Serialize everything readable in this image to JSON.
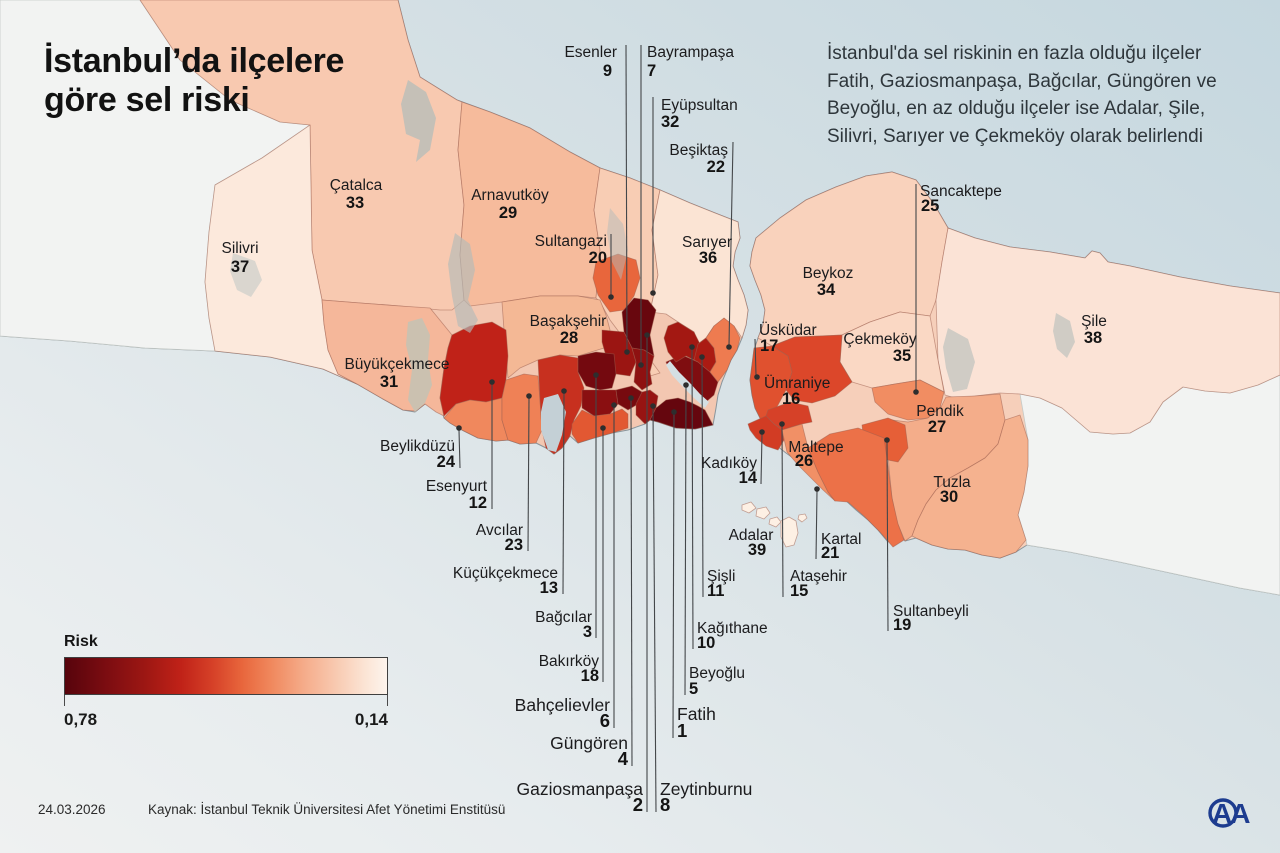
{
  "title": {
    "line1": "İstanbul’da ilçelere",
    "line2": "göre sel riski"
  },
  "description": {
    "text": "İstanbul'da sel riskinin en fazla olduğu ilçeler Fatih, Gaziosmanpaşa, Bağcılar, Güngören ve Beyoğlu, en az olduğu ilçeler ise Adalar, Şile, Silivri, Sarıyer ve Çekmeköy olarak belirlendi"
  },
  "legend": {
    "label": "Risk",
    "max_value": "0,78",
    "min_value": "0,14",
    "color_dark": "#57040c",
    "color_light": "#fdf4ed"
  },
  "footer": {
    "date": "24.03.2026",
    "source": "Kaynak: İstanbul Teknik Üniversitesi Afet Yönetimi Enstitüsü"
  },
  "logo": {
    "text": "AA",
    "color": "#1d3c8f"
  },
  "chart_data": {
    "type": "choropleth-map",
    "title": "İstanbul'da ilçelere göre sel riski",
    "value_label": "Risk",
    "value_range": [
      0.14,
      0.78
    ],
    "districts": [
      {
        "name": "Fatih",
        "rank": 1,
        "color": "#65060e"
      },
      {
        "name": "Gaziosmanpaşa",
        "rank": 2,
        "color": "#68070e"
      },
      {
        "name": "Bağcılar",
        "rank": 3,
        "color": "#74090f"
      },
      {
        "name": "Güngören",
        "rank": 4,
        "color": "#770a0f"
      },
      {
        "name": "Beyoğlu",
        "rank": 5,
        "color": "#7f0d10"
      },
      {
        "name": "Bahçelievler",
        "rank": 6,
        "color": "#8a0f11"
      },
      {
        "name": "Bayrampaşa",
        "rank": 7,
        "color": "#8e1111"
      },
      {
        "name": "Zeytinburnu",
        "rank": 8,
        "color": "#971412"
      },
      {
        "name": "Esenler",
        "rank": 9,
        "color": "#9b1512"
      },
      {
        "name": "Kağıthane",
        "rank": 10,
        "color": "#a31812"
      },
      {
        "name": "Şişli",
        "rank": 11,
        "color": "#ab1b13"
      },
      {
        "name": "Esenyurt",
        "rank": 12,
        "color": "#c02218"
      },
      {
        "name": "Küçükçekmece",
        "rank": 13,
        "color": "#c7301f"
      },
      {
        "name": "Kadıköy",
        "rank": 14,
        "color": "#d23c24"
      },
      {
        "name": "Ataşehir",
        "rank": 15,
        "color": "#d64128"
      },
      {
        "name": "Ümraniye",
        "rank": 16,
        "color": "#dc472a"
      },
      {
        "name": "Üsküdar",
        "rank": 17,
        "color": "#e0512f"
      },
      {
        "name": "Bakırköy",
        "rank": 18,
        "color": "#e25832"
      },
      {
        "name": "Sultanbeyli",
        "rank": 19,
        "color": "#e65f37"
      },
      {
        "name": "Sultangazi",
        "rank": 20,
        "color": "#e8663c"
      },
      {
        "name": "Kartal",
        "rank": 21,
        "color": "#ec7148"
      },
      {
        "name": "Beşiktaş",
        "rank": 22,
        "color": "#ee7b50"
      },
      {
        "name": "Avcılar",
        "rank": 23,
        "color": "#ef8156"
      },
      {
        "name": "Beylikdüzü",
        "rank": 24,
        "color": "#f0885d"
      },
      {
        "name": "Sancaktepe",
        "rank": 25,
        "color": "#f18d62"
      },
      {
        "name": "Maltepe",
        "rank": 26,
        "color": "#f19066"
      },
      {
        "name": "Pendik",
        "rank": 27,
        "color": "#f4ad8a"
      },
      {
        "name": "Başakşehir",
        "rank": 28,
        "color": "#f4b895"
      },
      {
        "name": "Arnavutköy",
        "rank": 29,
        "color": "#f6bb9c"
      },
      {
        "name": "Tuzla",
        "rank": 30,
        "color": "#f5b28f"
      },
      {
        "name": "Büyükçekmece",
        "rank": 31,
        "color": "#f5b79a"
      },
      {
        "name": "Eyüpsultan",
        "rank": 32,
        "color": "#f8cdb4"
      },
      {
        "name": "Çatalca",
        "rank": 33,
        "color": "#f8c9b0"
      },
      {
        "name": "Beykoz",
        "rank": 34,
        "color": "#f9d2bc"
      },
      {
        "name": "Çekmeköy",
        "rank": 35,
        "color": "#fad8c4"
      },
      {
        "name": "Sarıyer",
        "rank": 36,
        "color": "#fbe4d4"
      },
      {
        "name": "Silivri",
        "rank": 37,
        "color": "#fce9dc"
      },
      {
        "name": "Şile",
        "rank": 38,
        "color": "#fbe3d6"
      },
      {
        "name": "Adalar",
        "rank": 39,
        "color": "#fdf0e4"
      }
    ]
  }
}
